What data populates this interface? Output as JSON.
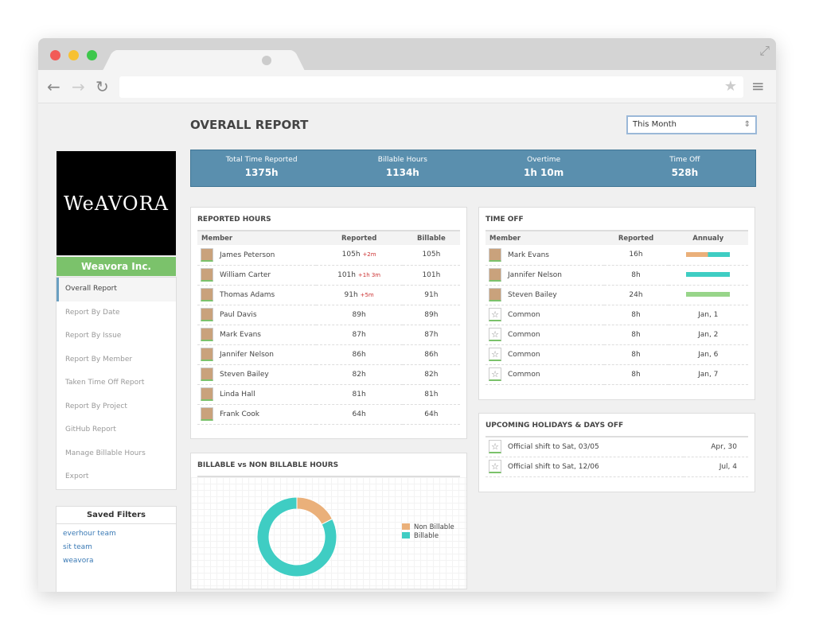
{
  "colors": {
    "accent": "#5a8fae",
    "green": "#7bc26b",
    "teal": "#3fcdc3",
    "orange": "#eab07a"
  },
  "page_title": "OVERALL REPORT",
  "period": "This Month",
  "stats": [
    {
      "label": "Total Time Reported",
      "value": "1375h"
    },
    {
      "label": "Billable Hours",
      "value": "1134h"
    },
    {
      "label": "Overtime",
      "value": "1h 10m"
    },
    {
      "label": "Time Off",
      "value": "528h"
    }
  ],
  "logo_text": "WeAVORA",
  "company": "Weavora Inc.",
  "menu": [
    "Overall Report",
    "Report By Date",
    "Report By Issue",
    "Report By Member",
    "Taken Time Off Report",
    "Report By Project",
    "GitHub Report",
    "Manage Billable Hours",
    "Export"
  ],
  "saved_filters": {
    "title": "Saved Filters",
    "items": [
      "everhour team",
      "sit team",
      "weavora"
    ]
  },
  "reported": {
    "title": "REPORTED HOURS",
    "headers": [
      "Member",
      "Reported",
      "Billable"
    ],
    "rows": [
      [
        "James Peterson",
        "105h",
        "+2m",
        "105h"
      ],
      [
        "William Carter",
        "101h",
        "+1h 3m",
        "101h"
      ],
      [
        "Thomas Adams",
        "91h",
        "+5m",
        "91h"
      ],
      [
        "Paul Davis",
        "89h",
        "",
        "89h"
      ],
      [
        "Mark Evans",
        "87h",
        "",
        "87h"
      ],
      [
        "Jannifer Nelson",
        "86h",
        "",
        "86h"
      ],
      [
        "Steven Bailey",
        "82h",
        "",
        "82h"
      ],
      [
        "Linda Hall",
        "81h",
        "",
        "81h"
      ],
      [
        "Frank Cook",
        "64h",
        "",
        "64h"
      ]
    ]
  },
  "timeoff": {
    "title": "TIME OFF",
    "headers": [
      "Member",
      "Reported",
      "Annualy"
    ],
    "members": [
      {
        "name": "Mark Evans",
        "reported": "16h",
        "bar": [
          [
            "#eab07a",
            0.5
          ],
          [
            "#3fcdc3",
            0.5
          ]
        ]
      },
      {
        "name": "Jannifer Nelson",
        "reported": "8h",
        "bar": [
          [
            "#3fcdc3",
            1
          ]
        ]
      },
      {
        "name": "Steven Bailey",
        "reported": "24h",
        "bar": [
          [
            "#98d58a",
            1
          ]
        ]
      }
    ],
    "common": [
      [
        "Common",
        "8h",
        "Jan, 1"
      ],
      [
        "Common",
        "8h",
        "Jan, 2"
      ],
      [
        "Common",
        "8h",
        "Jan, 6"
      ],
      [
        "Common",
        "8h",
        "Jan, 7"
      ]
    ]
  },
  "holidays": {
    "title": "UPCOMING HOLIDAYS & DAYS OFF",
    "rows": [
      [
        "Official shift to Sat, 03/05",
        "Apr, 30"
      ],
      [
        "Official shift to Sat, 12/06",
        "Jul, 4"
      ]
    ]
  },
  "chart_data": {
    "type": "pie",
    "title": "BILLABLE vs NON BILLABLE HOURS",
    "categories": [
      "Non Billable",
      "Billable"
    ],
    "values": [
      241,
      1134
    ],
    "colors": [
      "#eab07a",
      "#3fcdc3"
    ],
    "legend": "right",
    "donut": true
  }
}
